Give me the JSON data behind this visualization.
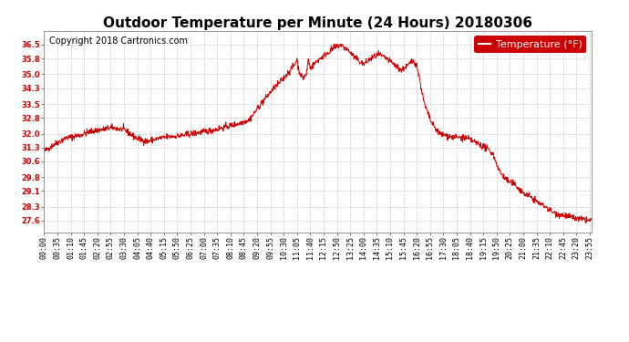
{
  "title": "Outdoor Temperature per Minute (24 Hours) 20180306",
  "copyright": "Copyright 2018 Cartronics.com",
  "legend_label": "Temperature (°F)",
  "line_color": "#cc0000",
  "background_color": "#ffffff",
  "plot_bg_color": "#ffffff",
  "grid_color": "#bbbbbb",
  "ylim": [
    27.0,
    37.2
  ],
  "yticks": [
    27.6,
    28.3,
    29.1,
    29.8,
    30.6,
    31.3,
    32.0,
    32.8,
    33.5,
    34.3,
    35.0,
    35.8,
    36.5
  ],
  "title_fontsize": 11,
  "copyright_fontsize": 7,
  "legend_fontsize": 8,
  "tick_fontsize": 6,
  "tick_label_color": "#000000",
  "ytick_label_color": "#cc0000"
}
